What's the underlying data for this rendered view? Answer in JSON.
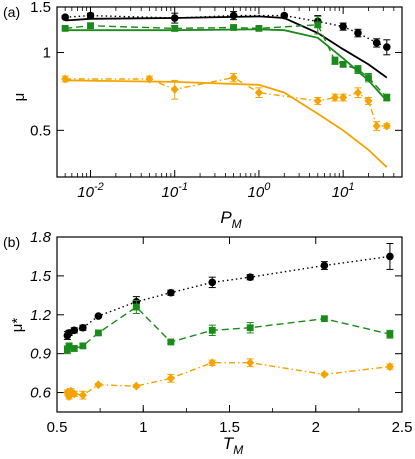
{
  "chart_data": [
    {
      "panel_label": "(a)",
      "type": "line",
      "xscale": "log",
      "yscale": "log",
      "xlim": [
        0.004,
        50
      ],
      "ylim": [
        0.33,
        1.5
      ],
      "xlabel": "P",
      "xlabel_sub": "M",
      "ylabel": "μ",
      "x_ticks": [
        0.01,
        0.1,
        1,
        10
      ],
      "x_tick_labels": [
        {
          "base": "10",
          "exp": "-2"
        },
        {
          "base": "10",
          "exp": "-1"
        },
        {
          "base": "10",
          "exp": "0"
        },
        {
          "base": "10",
          "exp": "1"
        }
      ],
      "y_ticks": [
        0.5,
        1,
        1.5
      ],
      "y_tick_labels": [
        "0.5",
        "1",
        "1.5"
      ],
      "grid": false,
      "series": [
        {
          "color": "#000000",
          "marker": "circle",
          "line": "dotted",
          "x": [
            0.005,
            0.01,
            0.1,
            0.5,
            2,
            5,
            10,
            15,
            25,
            33
          ],
          "y": [
            1.37,
            1.39,
            1.36,
            1.39,
            1.39,
            1.32,
            1.26,
            1.19,
            1.09,
            1.05
          ],
          "err": [
            0.02,
            0.03,
            0.06,
            0.05,
            0.02,
            0.07,
            0.04,
            0.04,
            0.04,
            0.07
          ]
        },
        {
          "color": "#000000",
          "marker": "none",
          "line": "solid",
          "x": [
            0.005,
            0.01,
            0.1,
            1,
            2,
            5,
            10,
            20,
            33
          ],
          "y": [
            1.33,
            1.35,
            1.36,
            1.38,
            1.36,
            1.19,
            1.03,
            0.9,
            0.8
          ]
        },
        {
          "color": "#1a8a1a",
          "marker": "square",
          "line": "dashed",
          "x": [
            0.005,
            0.01,
            0.1,
            0.5,
            1,
            5,
            8,
            10,
            15,
            20,
            33
          ],
          "y": [
            1.24,
            1.27,
            1.24,
            1.25,
            1.24,
            1.28,
            0.93,
            0.9,
            0.86,
            0.8,
            0.67
          ],
          "err": [
            0.02,
            0.03,
            0.03,
            0.02,
            0.02,
            0.1,
            0.03,
            0.02,
            0.03,
            0.03,
            0.02
          ]
        },
        {
          "color": "#1a8a1a",
          "marker": "none",
          "line": "solid",
          "x": [
            0.005,
            0.1,
            1,
            2,
            5,
            10,
            20,
            33
          ],
          "y": [
            1.22,
            1.22,
            1.23,
            1.22,
            1.14,
            0.95,
            0.78,
            0.65
          ]
        },
        {
          "color": "#f5a300",
          "marker": "diamond",
          "line": "dashdot",
          "x": [
            0.005,
            0.05,
            0.1,
            0.5,
            1,
            5,
            8,
            10,
            15,
            20,
            25,
            33
          ],
          "y": [
            0.79,
            0.79,
            0.72,
            0.8,
            0.7,
            0.65,
            0.67,
            0.67,
            0.7,
            0.65,
            0.52,
            0.52
          ],
          "err": [
            0.02,
            0.02,
            0.06,
            0.03,
            0.03,
            0.02,
            0.02,
            0.02,
            0.03,
            0.02,
            0.02,
            0.01
          ]
        },
        {
          "color": "#f5a300",
          "marker": "none",
          "line": "solid",
          "x": [
            0.005,
            0.1,
            1,
            2,
            5,
            10,
            20,
            33
          ],
          "y": [
            0.78,
            0.77,
            0.75,
            0.7,
            0.58,
            0.5,
            0.42,
            0.36
          ]
        }
      ]
    },
    {
      "panel_label": "(b)",
      "type": "line",
      "xscale": "linear",
      "yscale": "linear",
      "xlim": [
        0.5,
        2.5
      ],
      "ylim": [
        0.45,
        1.8
      ],
      "xlabel": "T",
      "xlabel_sub": "M",
      "ylabel": "μ*",
      "x_ticks": [
        0.5,
        1,
        1.5,
        2,
        2.5
      ],
      "x_tick_labels": [
        "0.5",
        "1",
        "1.5",
        "2",
        "2.5"
      ],
      "y_ticks": [
        0.6,
        0.9,
        1.2,
        1.5,
        1.8
      ],
      "y_tick_labels": [
        "0.6",
        "0.9",
        "1.2",
        "1.5",
        "1.8"
      ],
      "grid": false,
      "series": [
        {
          "color": "#000000",
          "marker": "circle",
          "line": "dotted",
          "x": [
            0.56,
            0.57,
            0.6,
            0.65,
            0.74,
            0.96,
            1.16,
            1.4,
            1.62,
            2.05,
            2.43
          ],
          "y": [
            1.04,
            1.06,
            1.08,
            1.1,
            1.19,
            1.3,
            1.37,
            1.45,
            1.49,
            1.58,
            1.65
          ],
          "err": [
            0.03,
            0.02,
            0.02,
            0.02,
            0.01,
            0.04,
            0.02,
            0.04,
            0.02,
            0.03,
            0.1
          ]
        },
        {
          "color": "#1a8a1a",
          "marker": "square",
          "line": "dashed",
          "x": [
            0.56,
            0.57,
            0.6,
            0.65,
            0.74,
            0.96,
            1.16,
            1.4,
            1.62,
            2.05,
            2.43
          ],
          "y": [
            0.93,
            0.96,
            0.94,
            0.96,
            1.06,
            1.26,
            0.99,
            1.08,
            1.1,
            1.17,
            1.05
          ],
          "err": [
            0.03,
            0.02,
            0.02,
            0.02,
            0.01,
            0.05,
            0.01,
            0.04,
            0.04,
            0.01,
            0.03
          ]
        },
        {
          "color": "#f5a300",
          "marker": "diamond",
          "line": "dashdot",
          "x": [
            0.56,
            0.57,
            0.58,
            0.6,
            0.65,
            0.74,
            0.96,
            1.16,
            1.4,
            1.62,
            2.05,
            2.43
          ],
          "y": [
            0.6,
            0.57,
            0.61,
            0.59,
            0.58,
            0.66,
            0.65,
            0.71,
            0.83,
            0.83,
            0.74,
            0.8
          ],
          "err": [
            0.02,
            0.02,
            0.02,
            0.02,
            0.03,
            0.01,
            0.01,
            0.03,
            0.02,
            0.03,
            0.01,
            0.02
          ]
        }
      ]
    }
  ]
}
